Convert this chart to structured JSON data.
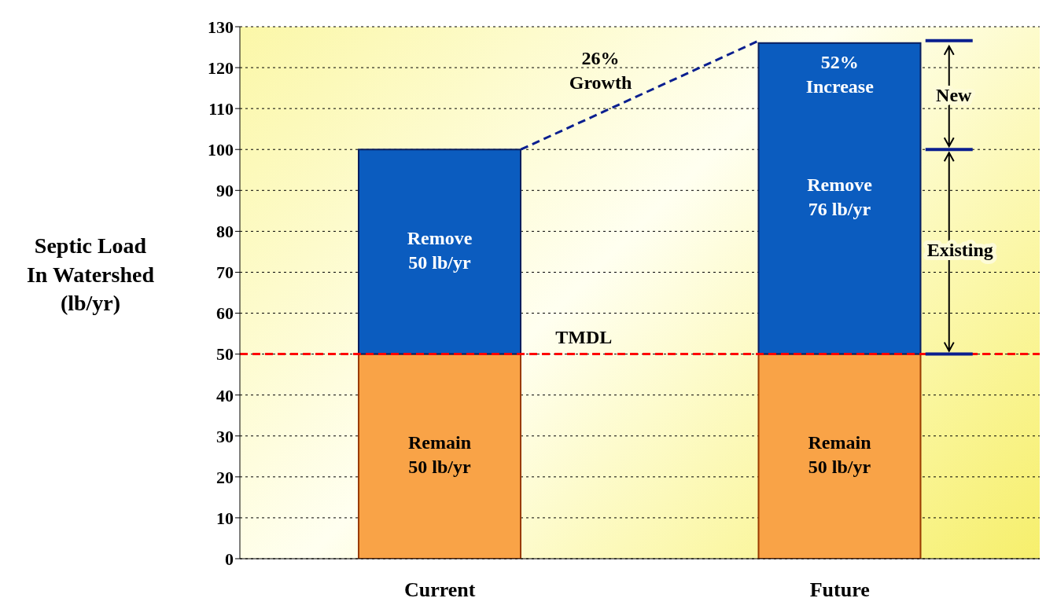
{
  "chart_data": {
    "type": "bar",
    "ylabel": "Septic Load\nIn Watershed\n(lb/yr)",
    "categories": [
      "Current",
      "Future"
    ],
    "stacked": true,
    "series": [
      {
        "color": "#f9a347",
        "values": [
          50,
          50
        ],
        "value_labels": [
          "Remain\n50 lb/yr",
          "Remain\n50 lb/yr"
        ]
      },
      {
        "color": "#0b5cbf",
        "values": [
          50,
          76
        ],
        "value_labels": [
          "Remove\n50 lb/yr",
          "Remove\n76 lb/yr"
        ]
      }
    ],
    "ylim": [
      0,
      130
    ],
    "yticks": [
      0,
      10,
      20,
      30,
      40,
      50,
      60,
      70,
      80,
      90,
      100,
      110,
      120,
      130
    ],
    "grid": "y",
    "ref_lines": [
      {
        "axis": "y",
        "value": 50,
        "label": "TMDL",
        "color": "#ff0000",
        "line_style": "dashed"
      }
    ],
    "annotations": [
      "26%\nGrowth",
      "52%\nIncrease",
      "New",
      "Existing"
    ]
  }
}
